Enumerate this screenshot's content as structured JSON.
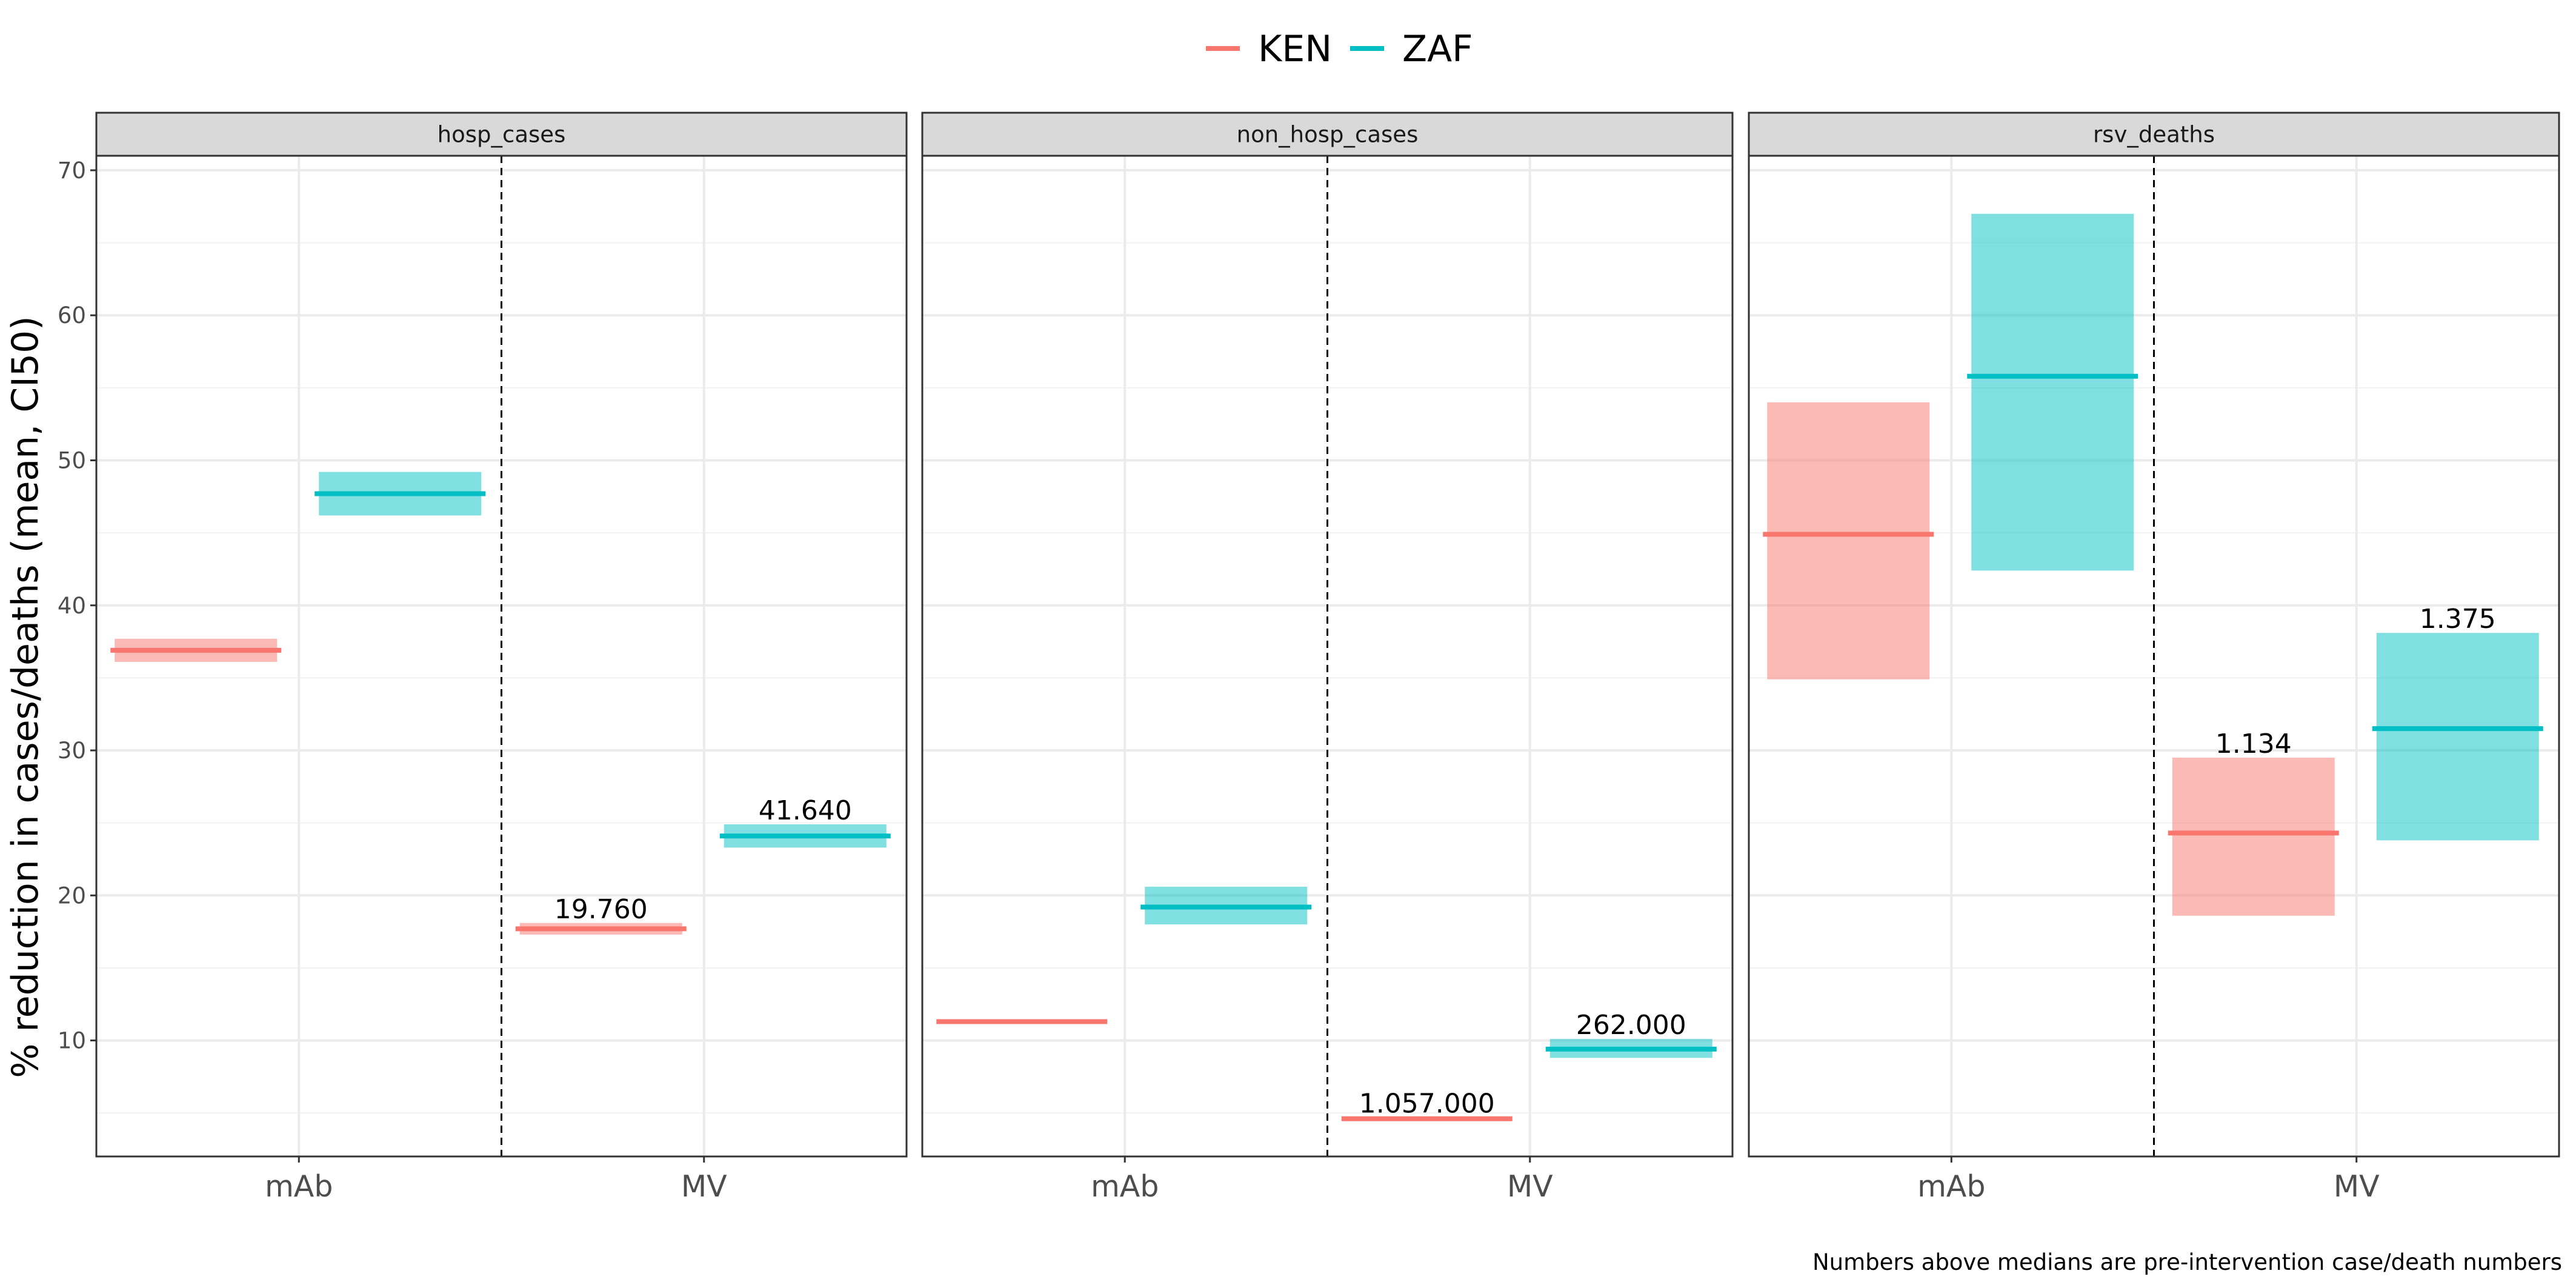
{
  "chart_data": {
    "type": "crossbar",
    "ylabel": "% reduction in cases/deaths (mean, CI50)",
    "xlabel": "",
    "ylim": [
      2,
      71
    ],
    "y_ticks": [
      10,
      20,
      30,
      40,
      50,
      60,
      70
    ],
    "categories": [
      "mAb",
      "MV"
    ],
    "caption": "Numbers above medians are pre-intervention case/death numbers",
    "legend": {
      "position": "top",
      "entries": [
        {
          "name": "KEN",
          "color": "#F8766D"
        },
        {
          "name": "ZAF",
          "color": "#00BFC4"
        }
      ]
    },
    "grid": true,
    "panels": [
      {
        "title": "hosp_cases",
        "series": [
          {
            "name": "KEN",
            "color": "#F8766D",
            "points": [
              {
                "category": "mAb",
                "mean": 36.9,
                "low": 36.1,
                "high": 37.7,
                "label": ""
              },
              {
                "category": "MV",
                "mean": 17.7,
                "low": 17.3,
                "high": 18.1,
                "label": "19.760"
              }
            ]
          },
          {
            "name": "ZAF",
            "color": "#00BFC4",
            "points": [
              {
                "category": "mAb",
                "mean": 47.7,
                "low": 46.2,
                "high": 49.2,
                "label": ""
              },
              {
                "category": "MV",
                "mean": 24.1,
                "low": 23.3,
                "high": 24.9,
                "label": "41.640"
              }
            ]
          }
        ]
      },
      {
        "title": "non_hosp_cases",
        "series": [
          {
            "name": "KEN",
            "color": "#F8766D",
            "points": [
              {
                "category": "mAb",
                "mean": 11.3,
                "low": 11.2,
                "high": 11.4,
                "label": ""
              },
              {
                "category": "MV",
                "mean": 4.6,
                "low": 4.5,
                "high": 4.7,
                "label": "1.057.000"
              }
            ]
          },
          {
            "name": "ZAF",
            "color": "#00BFC4",
            "points": [
              {
                "category": "mAb",
                "mean": 19.2,
                "low": 18.0,
                "high": 20.6,
                "label": ""
              },
              {
                "category": "MV",
                "mean": 9.4,
                "low": 8.8,
                "high": 10.1,
                "label": "262.000"
              }
            ]
          }
        ]
      },
      {
        "title": "rsv_deaths",
        "series": [
          {
            "name": "KEN",
            "color": "#F8766D",
            "points": [
              {
                "category": "mAb",
                "mean": 44.9,
                "low": 34.9,
                "high": 54.0,
                "label": ""
              },
              {
                "category": "MV",
                "mean": 24.3,
                "low": 18.6,
                "high": 29.5,
                "label": "1.134"
              }
            ]
          },
          {
            "name": "ZAF",
            "color": "#00BFC4",
            "points": [
              {
                "category": "mAb",
                "mean": 55.8,
                "low": 42.4,
                "high": 67.0,
                "label": ""
              },
              {
                "category": "MV",
                "mean": 31.5,
                "low": 23.8,
                "high": 38.1,
                "label": "1.375"
              }
            ]
          }
        ]
      }
    ]
  }
}
